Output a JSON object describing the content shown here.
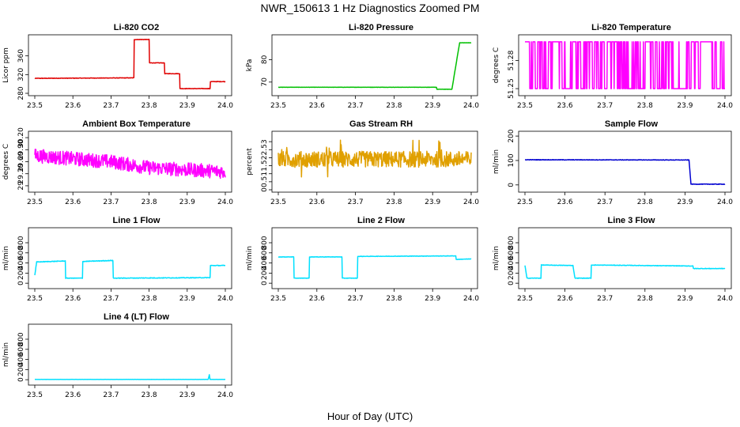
{
  "page": {
    "title": "NWR_150613  1 Hz Diagnostics Zoomed PM",
    "xlabel": "Hour of Day (UTC)"
  },
  "chart_data": [
    {
      "type": "line",
      "title": "Li-820 CO2",
      "ylabel": "Licor ppm",
      "color": "#e00000",
      "xlim": [
        23.5,
        24.0
      ],
      "ylim": [
        280,
        400
      ],
      "xticks": [
        "23.5",
        "23.6",
        "23.7",
        "23.8",
        "23.9",
        "24.0"
      ],
      "yticks": [
        280,
        320,
        360
      ],
      "series": [
        {
          "noise": 1,
          "points": [
            [
              23.5,
              312
            ],
            [
              23.76,
              313
            ],
            [
              23.76,
              395
            ],
            [
              23.8,
              395
            ],
            [
              23.8,
              345
            ],
            [
              23.84,
              345
            ],
            [
              23.84,
              322
            ],
            [
              23.88,
              322
            ],
            [
              23.88,
              290
            ],
            [
              23.96,
              290
            ],
            [
              23.96,
              305
            ],
            [
              24.0,
              305
            ]
          ]
        }
      ]
    },
    {
      "type": "line",
      "title": "Li-820 Pressure",
      "ylabel": "kPa",
      "color": "#00c000",
      "xlim": [
        23.5,
        24.0
      ],
      "ylim": [
        65,
        90
      ],
      "xticks": [
        "23.5",
        "23.6",
        "23.7",
        "23.8",
        "23.9",
        "24.0"
      ],
      "yticks": [
        70,
        80
      ],
      "series": [
        {
          "noise": 0.1,
          "points": [
            [
              23.5,
              67.7
            ],
            [
              23.91,
              67.7
            ],
            [
              23.91,
              66.8
            ],
            [
              23.95,
              66.8
            ],
            [
              23.97,
              87.5
            ],
            [
              24.0,
              87.5
            ]
          ]
        }
      ]
    },
    {
      "type": "line",
      "title": "Li-820 Temperature",
      "ylabel": "degrees C",
      "color": "#ff00ff",
      "xlim": [
        23.5,
        24.0
      ],
      "ylim": [
        51.245,
        51.305
      ],
      "xticks": [
        "23.5",
        "23.6",
        "23.7",
        "23.8",
        "23.9",
        "24.0"
      ],
      "yticks": [
        51.25,
        51.28
      ],
      "style": "toggle",
      "levels": [
        51.3,
        51.25
      ],
      "density": 0.5,
      "series": [
        {
          "points": [
            [
              23.5,
              51.3
            ],
            [
              24.0,
              51.3
            ]
          ]
        }
      ]
    },
    {
      "type": "line",
      "title": "Ambient Box Temperature",
      "ylabel": "degrees C",
      "color": "#ff00ff",
      "xlim": [
        23.5,
        24.0
      ],
      "ylim": [
        28.9,
        30.3
      ],
      "xticks": [
        "23.5",
        "23.6",
        "23.7",
        "23.8",
        "23.9",
        "24.0"
      ],
      "yticks": [
        29.0,
        29.3,
        29.6,
        29.9,
        30.2
      ],
      "series": [
        {
          "noise": 0.35,
          "points": [
            [
              23.5,
              29.75
            ],
            [
              23.7,
              29.6
            ],
            [
              23.8,
              29.45
            ],
            [
              24.0,
              29.35
            ]
          ]
        }
      ]
    },
    {
      "type": "line",
      "title": "Gas Stream RH",
      "ylabel": "percent",
      "color": "#e0a000",
      "xlim": [
        23.5,
        24.0
      ],
      "ylim": [
        0,
        3.5
      ],
      "xticks": [
        "23.5",
        "23.6",
        "23.7",
        "23.8",
        "23.9",
        "24.0"
      ],
      "yticks": [
        0.0,
        0.5,
        1.0,
        1.5,
        2.0,
        2.5,
        3.0
      ],
      "series": [
        {
          "noise": 1.0,
          "points": [
            [
              23.5,
              1.9
            ],
            [
              24.0,
              1.9
            ]
          ]
        }
      ]
    },
    {
      "type": "line",
      "title": "Sample Flow",
      "ylabel": "ml/min",
      "color": "#0000d0",
      "xlim": [
        23.5,
        24.0
      ],
      "ylim": [
        -20,
        210
      ],
      "xticks": [
        "23.5",
        "23.6",
        "23.7",
        "23.8",
        "23.9",
        "24.0"
      ],
      "yticks": [
        0,
        100,
        200
      ],
      "series": [
        {
          "noise": 2,
          "points": [
            [
              23.5,
              103
            ],
            [
              23.91,
              102
            ],
            [
              23.915,
              3
            ],
            [
              24.0,
              3
            ]
          ]
        }
      ]
    },
    {
      "type": "line",
      "title": "Line 1 Flow",
      "ylabel": "ml/min",
      "color": "#00e0ff",
      "xlim": [
        23.5,
        24.0
      ],
      "ylim": [
        -60,
        1050
      ],
      "xticks": [
        "23.5",
        "23.6",
        "23.7",
        "23.8",
        "23.9",
        "24.0"
      ],
      "yticks": [
        0,
        200,
        400,
        600,
        800
      ],
      "series": [
        {
          "noise": 12,
          "points": [
            [
              23.5,
              160
            ],
            [
              23.505,
              420
            ],
            [
              23.58,
              440
            ],
            [
              23.58,
              100
            ],
            [
              23.625,
              100
            ],
            [
              23.625,
              430
            ],
            [
              23.705,
              450
            ],
            [
              23.705,
              100
            ],
            [
              23.96,
              110
            ],
            [
              23.96,
              350
            ],
            [
              24.0,
              350
            ]
          ]
        }
      ]
    },
    {
      "type": "line",
      "title": "Line 2 Flow",
      "ylabel": "ml/min",
      "color": "#00e0ff",
      "xlim": [
        23.5,
        24.0
      ],
      "ylim": [
        -60,
        1050
      ],
      "xticks": [
        "23.5",
        "23.6",
        "23.7",
        "23.8",
        "23.9",
        "24.0"
      ],
      "yticks": [
        0,
        200,
        400,
        600,
        800
      ],
      "series": [
        {
          "noise": 8,
          "points": [
            [
              23.5,
              520
            ],
            [
              23.54,
              520
            ],
            [
              23.54,
              100
            ],
            [
              23.58,
              100
            ],
            [
              23.58,
              520
            ],
            [
              23.665,
              520
            ],
            [
              23.665,
              100
            ],
            [
              23.705,
              100
            ],
            [
              23.705,
              530
            ],
            [
              23.96,
              540
            ],
            [
              23.96,
              470
            ],
            [
              24.0,
              480
            ]
          ]
        }
      ]
    },
    {
      "type": "line",
      "title": "Line 3 Flow",
      "ylabel": "ml/min",
      "color": "#00e0ff",
      "xlim": [
        23.5,
        24.0
      ],
      "ylim": [
        -60,
        1050
      ],
      "xticks": [
        "23.5",
        "23.6",
        "23.7",
        "23.8",
        "23.9",
        "24.0"
      ],
      "yticks": [
        0,
        200,
        400,
        600,
        800
      ],
      "series": [
        {
          "noise": 10,
          "points": [
            [
              23.5,
              350
            ],
            [
              23.505,
              100
            ],
            [
              23.54,
              100
            ],
            [
              23.54,
              360
            ],
            [
              23.62,
              350
            ],
            [
              23.625,
              100
            ],
            [
              23.665,
              100
            ],
            [
              23.665,
              360
            ],
            [
              23.92,
              340
            ],
            [
              23.92,
              290
            ],
            [
              24.0,
              290
            ]
          ]
        }
      ]
    },
    {
      "type": "line",
      "title": "Line 4 (LT) Flow",
      "ylabel": "ml/min",
      "color": "#00e0ff",
      "xlim": [
        23.5,
        24.0
      ],
      "ylim": [
        -60,
        1050
      ],
      "xticks": [
        "23.5",
        "23.6",
        "23.7",
        "23.8",
        "23.9",
        "24.0"
      ],
      "yticks": [
        0,
        200,
        400,
        600,
        800
      ],
      "series": [
        {
          "noise": 3,
          "points": [
            [
              23.5,
              5
            ],
            [
              23.955,
              5
            ],
            [
              23.958,
              100
            ],
            [
              23.96,
              5
            ],
            [
              24.0,
              5
            ]
          ]
        }
      ]
    }
  ]
}
